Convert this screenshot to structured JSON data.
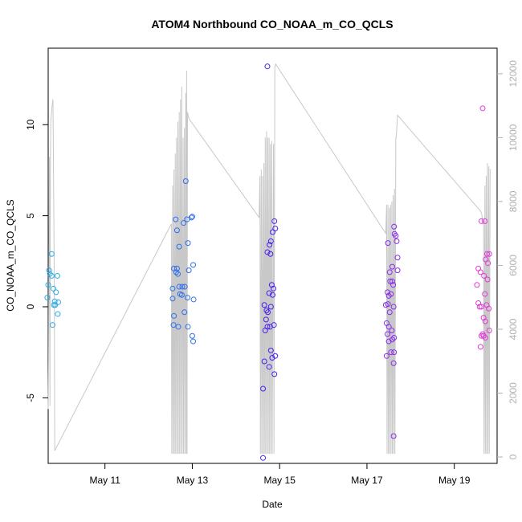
{
  "chart_data": {
    "type": "scatter",
    "title": "ATOM4 Northbound CO_NOAA_m_CO_QCLS",
    "xlabel": "Date",
    "ylabel": "CO_NOAA_m_CO_QCLS",
    "x_ticks": [
      {
        "label": "May 11",
        "day": 11
      },
      {
        "label": "May 13",
        "day": 13
      },
      {
        "label": "May 15",
        "day": 15
      },
      {
        "label": "May 17",
        "day": 17
      },
      {
        "label": "May 19",
        "day": 19
      }
    ],
    "xlim_days": [
      9.7,
      19.98
    ],
    "ylim": [
      -8.6,
      14.2
    ],
    "y_ticks": [
      -5,
      0,
      5,
      10
    ],
    "y_tick_labels": [
      "-5",
      "0",
      "5",
      "10"
    ],
    "secondary_ylim": [
      -200,
      12800
    ],
    "secondary_y_ticks": [
      0,
      2000,
      4000,
      6000,
      8000,
      10000,
      12000
    ],
    "secondary_y_tick_labels": [
      "0",
      "2000",
      "4000",
      "6000",
      "8000",
      "10000",
      "12000"
    ],
    "colors": {
      "axis": "#000000",
      "secondary_axis": "#b0b0b0",
      "altitude_line": "#c8c8c8",
      "flight_colors": [
        "#29abe2",
        "#2f6ff0",
        "#4a1ff0",
        "#8a2ee8",
        "#e23ad9"
      ]
    },
    "series": [
      {
        "flight": 1,
        "points": [
          [
            9.78,
            2.9
          ],
          [
            9.72,
            2.0
          ],
          [
            9.74,
            1.8
          ],
          [
            9.78,
            1.7
          ],
          [
            9.91,
            1.7
          ],
          [
            9.7,
            1.2
          ],
          [
            9.82,
            1.0
          ],
          [
            9.88,
            0.8
          ],
          [
            9.68,
            0.5
          ],
          [
            9.85,
            0.3
          ],
          [
            9.93,
            0.25
          ],
          [
            9.83,
            0.1
          ],
          [
            9.86,
            0.1
          ],
          [
            9.92,
            -0.4
          ],
          [
            9.8,
            -1.0
          ]
        ]
      },
      {
        "flight": 2,
        "points": [
          [
            12.85,
            6.9
          ],
          [
            12.98,
            4.9
          ],
          [
            13.0,
            4.95
          ],
          [
            12.62,
            4.8
          ],
          [
            12.8,
            4.6
          ],
          [
            12.88,
            4.8
          ],
          [
            12.65,
            4.2
          ],
          [
            12.9,
            3.5
          ],
          [
            12.7,
            3.3
          ],
          [
            13.02,
            2.3
          ],
          [
            12.58,
            2.1
          ],
          [
            12.65,
            2.1
          ],
          [
            12.92,
            2.0
          ],
          [
            12.63,
            1.9
          ],
          [
            12.67,
            1.8
          ],
          [
            12.55,
            1.0
          ],
          [
            12.7,
            1.1
          ],
          [
            12.77,
            1.1
          ],
          [
            12.83,
            1.1
          ],
          [
            12.72,
            0.7
          ],
          [
            12.76,
            0.65
          ],
          [
            12.55,
            0.45
          ],
          [
            12.89,
            0.5
          ],
          [
            13.03,
            0.4
          ],
          [
            12.82,
            -0.3
          ],
          [
            12.58,
            -0.5
          ],
          [
            12.57,
            -1.0
          ],
          [
            12.68,
            -1.1
          ],
          [
            12.9,
            -1.1
          ],
          [
            13.0,
            -1.6
          ],
          [
            13.02,
            -1.9
          ]
        ]
      },
      {
        "flight": 3,
        "points": [
          [
            14.72,
            13.2
          ],
          [
            14.88,
            4.7
          ],
          [
            14.9,
            4.3
          ],
          [
            14.84,
            4.1
          ],
          [
            14.8,
            3.6
          ],
          [
            14.77,
            3.4
          ],
          [
            14.72,
            3.0
          ],
          [
            14.79,
            2.9
          ],
          [
            14.82,
            1.2
          ],
          [
            14.86,
            1.0
          ],
          [
            14.76,
            0.75
          ],
          [
            14.84,
            0.65
          ],
          [
            14.65,
            0.1
          ],
          [
            14.8,
            0.0
          ],
          [
            14.7,
            -0.2
          ],
          [
            14.73,
            -0.3
          ],
          [
            14.69,
            -0.7
          ],
          [
            14.72,
            -1.1
          ],
          [
            14.78,
            -1.1
          ],
          [
            14.87,
            -1.0
          ],
          [
            14.67,
            -1.3
          ],
          [
            14.8,
            -2.4
          ],
          [
            14.9,
            -2.7
          ],
          [
            14.83,
            -2.8
          ],
          [
            14.65,
            -3.0
          ],
          [
            14.76,
            -3.3
          ],
          [
            14.88,
            -3.7
          ],
          [
            14.62,
            -4.5
          ],
          [
            14.62,
            -8.3
          ]
        ]
      },
      {
        "flight": 4,
        "points": [
          [
            17.62,
            4.4
          ],
          [
            17.63,
            4.0
          ],
          [
            17.66,
            3.9
          ],
          [
            17.48,
            3.5
          ],
          [
            17.68,
            3.6
          ],
          [
            17.7,
            2.7
          ],
          [
            17.58,
            2.2
          ],
          [
            17.7,
            2.0
          ],
          [
            17.52,
            1.9
          ],
          [
            17.53,
            1.4
          ],
          [
            17.58,
            1.4
          ],
          [
            17.6,
            1.2
          ],
          [
            17.47,
            0.8
          ],
          [
            17.55,
            0.7
          ],
          [
            17.5,
            0.6
          ],
          [
            17.43,
            0.1
          ],
          [
            17.48,
            0.15
          ],
          [
            17.61,
            0.0
          ],
          [
            17.52,
            -0.3
          ],
          [
            17.45,
            -0.9
          ],
          [
            17.5,
            -1.1
          ],
          [
            17.57,
            -1.3
          ],
          [
            17.47,
            -1.5
          ],
          [
            17.58,
            -1.8
          ],
          [
            17.62,
            -1.7
          ],
          [
            17.5,
            -1.9
          ],
          [
            17.55,
            -2.5
          ],
          [
            17.62,
            -2.5
          ],
          [
            17.45,
            -2.7
          ],
          [
            17.61,
            -3.1
          ],
          [
            17.61,
            -7.1
          ]
        ]
      },
      {
        "flight": 5,
        "points": [
          [
            19.65,
            10.9
          ],
          [
            19.62,
            4.7
          ],
          [
            19.7,
            4.7
          ],
          [
            19.75,
            2.9
          ],
          [
            19.8,
            2.9
          ],
          [
            19.72,
            2.6
          ],
          [
            19.77,
            2.4
          ],
          [
            19.55,
            2.1
          ],
          [
            19.6,
            1.9
          ],
          [
            19.68,
            1.7
          ],
          [
            19.76,
            1.5
          ],
          [
            19.52,
            1.2
          ],
          [
            19.7,
            0.7
          ],
          [
            19.55,
            0.2
          ],
          [
            19.58,
            0.0
          ],
          [
            19.62,
            0.0
          ],
          [
            19.74,
            0.1
          ],
          [
            19.79,
            -0.1
          ],
          [
            19.67,
            -0.6
          ],
          [
            19.71,
            -0.8
          ],
          [
            19.8,
            -1.3
          ],
          [
            19.65,
            -1.5
          ],
          [
            19.62,
            -1.6
          ],
          [
            19.67,
            -1.6
          ],
          [
            19.71,
            -1.7
          ],
          [
            19.6,
            -2.2
          ]
        ]
      }
    ],
    "altitude_path": [
      [
        9.7,
        1500
      ],
      [
        9.71,
        3000
      ],
      [
        9.72,
        7500
      ],
      [
        9.73,
        9400
      ],
      [
        9.74,
        1600
      ],
      [
        9.75,
        9000
      ],
      [
        9.76,
        10500
      ],
      [
        9.79,
        11000
      ],
      [
        9.81,
        11200
      ],
      [
        9.84,
        5500
      ],
      [
        9.85,
        200
      ],
      [
        12.52,
        7300
      ],
      [
        12.53,
        100
      ],
      [
        12.55,
        8500
      ],
      [
        12.56,
        100
      ],
      [
        12.58,
        9000
      ],
      [
        12.59,
        100
      ],
      [
        12.61,
        9500
      ],
      [
        12.62,
        100
      ],
      [
        12.64,
        10000
      ],
      [
        12.65,
        100
      ],
      [
        12.67,
        10500
      ],
      [
        12.68,
        100
      ],
      [
        12.7,
        10800
      ],
      [
        12.71,
        100
      ],
      [
        12.73,
        11200
      ],
      [
        12.74,
        100
      ],
      [
        12.76,
        11600
      ],
      [
        12.77,
        100
      ],
      [
        12.79,
        10000
      ],
      [
        12.8,
        100
      ],
      [
        12.82,
        10300
      ],
      [
        12.83,
        100
      ],
      [
        12.85,
        11400
      ],
      [
        12.86,
        100
      ],
      [
        12.87,
        12100
      ],
      [
        12.88,
        100
      ],
      [
        12.89,
        10800
      ],
      [
        12.92,
        10600
      ],
      [
        14.53,
        7500
      ],
      [
        14.55,
        8800
      ],
      [
        14.56,
        100
      ],
      [
        14.58,
        9000
      ],
      [
        14.59,
        100
      ],
      [
        14.61,
        8800
      ],
      [
        14.62,
        100
      ],
      [
        14.64,
        9200
      ],
      [
        14.65,
        100
      ],
      [
        14.67,
        10000
      ],
      [
        14.68,
        100
      ],
      [
        14.7,
        10200
      ],
      [
        14.71,
        100
      ],
      [
        14.73,
        10000
      ],
      [
        14.74,
        100
      ],
      [
        14.76,
        10000
      ],
      [
        14.77,
        100
      ],
      [
        14.79,
        9800
      ],
      [
        14.8,
        100
      ],
      [
        14.82,
        9900
      ],
      [
        14.83,
        100
      ],
      [
        14.86,
        9800
      ],
      [
        14.87,
        100
      ],
      [
        14.89,
        12200
      ],
      [
        14.91,
        12300
      ],
      [
        17.43,
        7000
      ],
      [
        17.45,
        7900
      ],
      [
        17.46,
        100
      ],
      [
        17.48,
        7900
      ],
      [
        17.49,
        100
      ],
      [
        17.51,
        7800
      ],
      [
        17.52,
        100
      ],
      [
        17.54,
        7900
      ],
      [
        17.55,
        100
      ],
      [
        17.57,
        8000
      ],
      [
        17.58,
        100
      ],
      [
        17.6,
        8200
      ],
      [
        17.61,
        100
      ],
      [
        17.63,
        8400
      ],
      [
        17.64,
        100
      ],
      [
        17.66,
        10000
      ],
      [
        17.67,
        10000
      ],
      [
        17.7,
        10700
      ],
      [
        19.6,
        7700
      ],
      [
        19.63,
        7600
      ],
      [
        19.65,
        7300
      ],
      [
        19.67,
        7400
      ],
      [
        19.68,
        100
      ],
      [
        19.7,
        8500
      ],
      [
        19.71,
        100
      ],
      [
        19.73,
        8800
      ],
      [
        19.74,
        100
      ],
      [
        19.76,
        9200
      ],
      [
        19.77,
        100
      ],
      [
        19.79,
        9100
      ],
      [
        19.8,
        100
      ],
      [
        19.82,
        9000
      ],
      [
        19.84,
        9000
      ]
    ]
  }
}
